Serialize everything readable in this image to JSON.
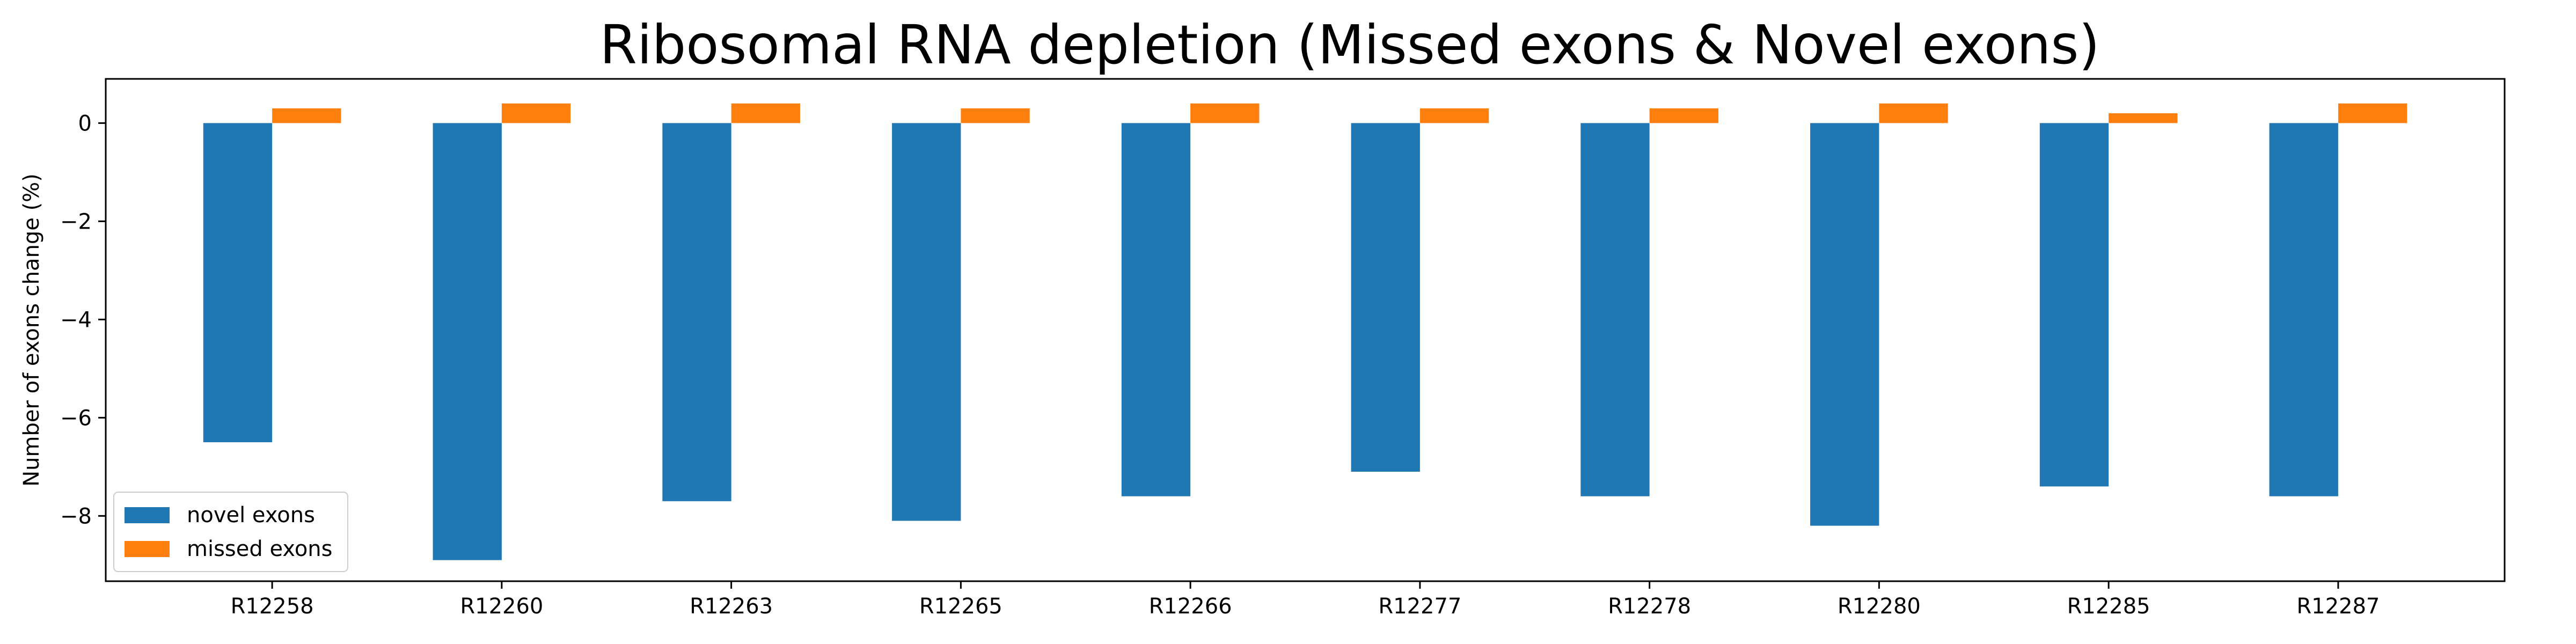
{
  "chart_data": {
    "type": "bar",
    "title": "Ribosomal RNA depletion (Missed exons & Novel exons)",
    "xlabel": "",
    "ylabel": "Number of exons change (%)",
    "categories": [
      "R12258",
      "R12260",
      "R12263",
      "R12265",
      "R12266",
      "R12277",
      "R12278",
      "R12280",
      "R12285",
      "R12287"
    ],
    "series": [
      {
        "name": "novel exons",
        "color": "#1f77b4",
        "values": [
          -6.5,
          -8.9,
          -7.7,
          -8.1,
          -7.6,
          -7.1,
          -7.6,
          -8.2,
          -7.4,
          -7.6
        ]
      },
      {
        "name": "missed exons",
        "color": "#ff7f0e",
        "values": [
          0.3,
          0.4,
          0.4,
          0.3,
          0.4,
          0.3,
          0.3,
          0.4,
          0.2,
          0.4
        ]
      }
    ],
    "ylim": [
      -9.33,
      0.9
    ],
    "yticks": [
      0,
      -2,
      -4,
      -6,
      -8
    ],
    "ytick_labels": [
      "0",
      "−2",
      "−4",
      "−6",
      "−8"
    ],
    "grid": false,
    "legend": "lower-left"
  }
}
